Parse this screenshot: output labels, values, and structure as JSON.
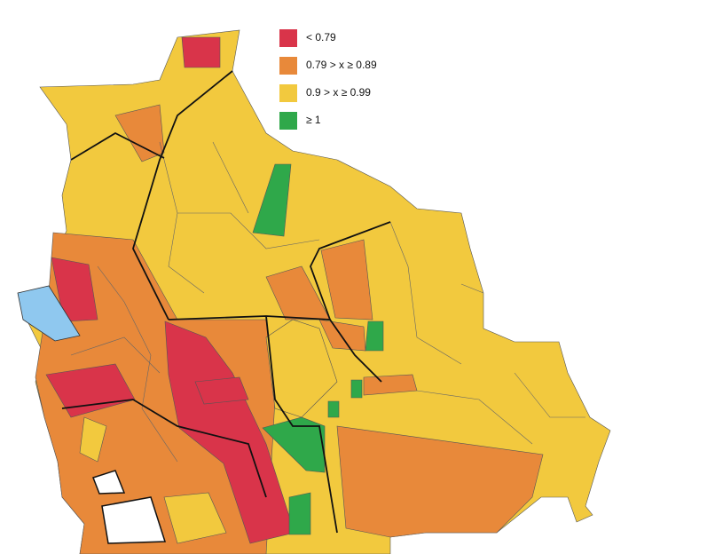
{
  "legend": {
    "items": [
      {
        "label": "< 0.79",
        "color": "#d9344a"
      },
      {
        "label": "0.79 > x ≥ 0.89",
        "color": "#e8893a"
      },
      {
        "label": "0.9 > x ≥ 0.99",
        "color": "#f2c93e"
      },
      {
        "label": "≥ 1",
        "color": "#2fa84a"
      }
    ]
  }
}
